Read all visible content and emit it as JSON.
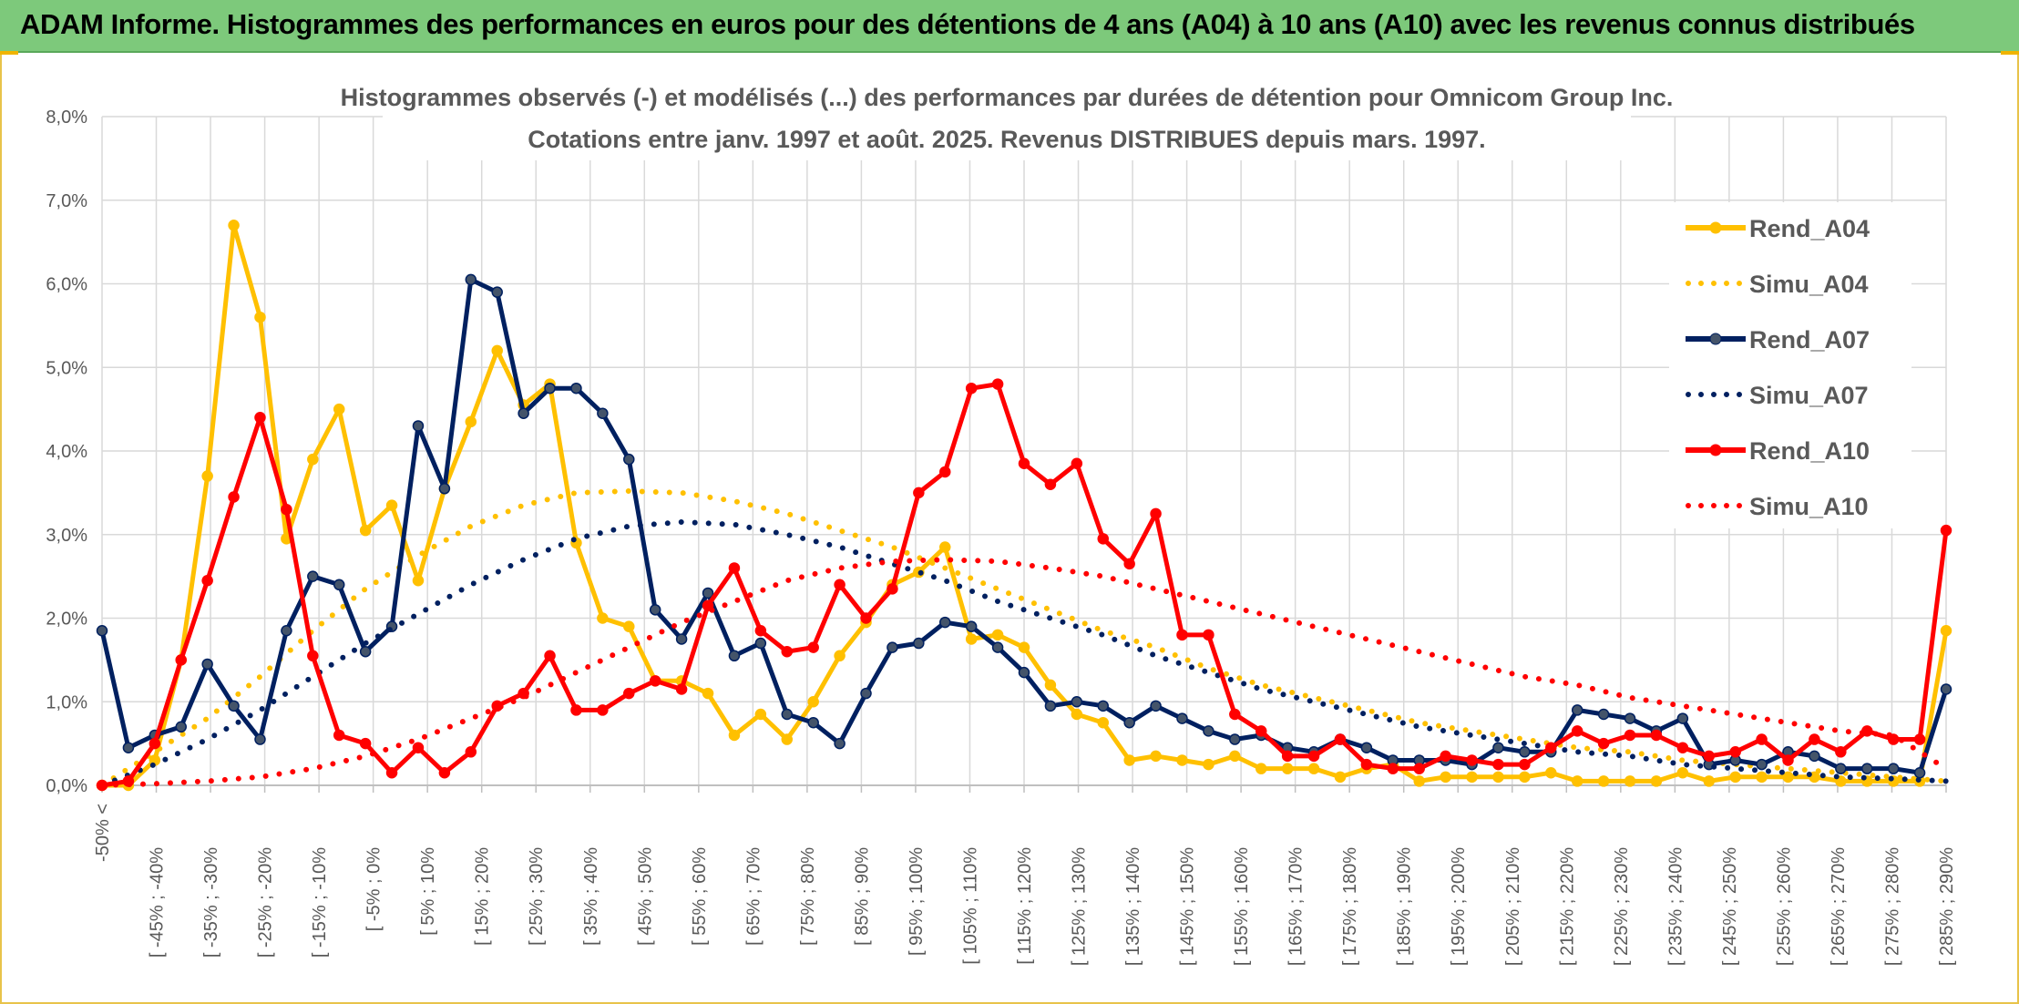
{
  "banner": {
    "title": "ADAM Informe. Histogrammes des performances en euros pour des détentions de 4 ans (A04) à 10 ans (A10) avec les revenus connus distribués"
  },
  "chart_data": {
    "type": "line",
    "title": "Histogrammes observés (-) et modélisés (...) des performances par durées de détention pour Omnicom Group Inc.",
    "subtitle": "Cotations entre janv. 1997 et août. 2025. Revenus DISTRIBUES depuis mars. 1997.",
    "xlabel": "",
    "ylabel": "",
    "ylim": [
      0,
      8
    ],
    "y_ticks": [
      "0,0%",
      "1,0%",
      "2,0%",
      "3,0%",
      "4,0%",
      "5,0%",
      "6,0%",
      "7,0%",
      "8,0%"
    ],
    "grid": true,
    "legend_position": "right",
    "x_labels": [
      "-50% <",
      "[ -45% ; -40%",
      "[ -35% ; -30%",
      "[ -25% ; -20%",
      "[ -15% ; -10%",
      "[ -5% ; 0%",
      "[ 5% ; 10%",
      "[ 15% ; 20%",
      "[ 25% ; 30%",
      "[ 35% ; 40%",
      "[ 45% ; 50%",
      "[ 55% ; 60%",
      "[ 65% ; 70%",
      "[ 75% ; 80%",
      "[ 85% ; 90%",
      "[ 95% ; 100%",
      "[ 105% ; 110%",
      "[ 115% ; 120%",
      "[ 125% ; 130%",
      "[ 135% ; 140%",
      "[ 145% ; 150%",
      "[ 155% ; 160%",
      "[ 165% ; 170%",
      "[ 175% ; 180%",
      "[ 185% ; 190%",
      "[ 195% ; 200%",
      "[ 205% ; 210%",
      "[ 215% ; 220%",
      "[ 225% ; 230%",
      "[ 235% ; 240%",
      "[ 245% ; 250%",
      "[ 255% ; 260%",
      "[ 265% ; 270%",
      "[ 275% ; 280%",
      "[ 285% ; 290%"
    ],
    "series": [
      {
        "name": "Rend_A04",
        "style": "solid",
        "color": "#ffc000",
        "values": [
          0.0,
          0.0,
          0.3,
          1.5,
          3.7,
          6.7,
          5.6,
          2.95,
          3.9,
          4.5,
          3.05,
          3.35,
          2.45,
          3.55,
          4.35,
          5.2,
          4.55,
          4.8,
          2.9,
          2.0,
          1.9,
          1.25,
          1.25,
          1.1,
          0.6,
          0.85,
          0.55,
          1.0,
          1.55,
          1.95,
          2.4,
          2.55,
          2.85,
          1.75,
          1.8,
          1.65,
          1.2,
          0.85,
          0.75,
          0.3,
          0.35,
          0.3,
          0.25,
          0.35,
          0.2,
          0.2,
          0.2,
          0.1,
          0.2,
          0.25,
          0.05,
          0.1,
          0.1,
          0.1,
          0.1,
          0.15,
          0.05,
          0.05,
          0.05,
          0.05,
          0.15,
          0.05,
          0.1,
          0.1,
          0.1,
          0.1,
          0.05,
          0.05,
          0.05,
          0.05,
          1.85
        ]
      },
      {
        "name": "Simu_A04",
        "style": "dotted",
        "color": "#ffc000",
        "values": [
          0.0,
          0.4,
          0.8,
          1.3,
          1.85,
          2.35,
          2.75,
          3.1,
          3.35,
          3.5,
          3.52,
          3.5,
          3.4,
          3.25,
          3.05,
          2.85,
          2.6,
          2.35,
          2.1,
          1.85,
          1.65,
          1.4,
          1.2,
          1.05,
          0.9,
          0.75,
          0.65,
          0.55,
          0.45,
          0.4,
          0.3,
          0.25,
          0.2,
          0.15,
          0.1,
          0.05
        ]
      },
      {
        "name": "Rend_A07",
        "style": "solid",
        "color": "#002060",
        "values": [
          1.85,
          0.45,
          0.6,
          0.7,
          1.45,
          0.95,
          0.55,
          1.85,
          2.5,
          2.4,
          1.6,
          1.9,
          4.3,
          3.55,
          6.05,
          5.9,
          4.45,
          4.75,
          4.75,
          4.45,
          3.9,
          2.1,
          1.75,
          2.3,
          1.55,
          1.7,
          0.85,
          0.75,
          0.5,
          1.1,
          1.65,
          1.7,
          1.95,
          1.9,
          1.65,
          1.35,
          0.95,
          1.0,
          0.95,
          0.75,
          0.95,
          0.8,
          0.65,
          0.55,
          0.6,
          0.45,
          0.4,
          0.55,
          0.45,
          0.3,
          0.3,
          0.3,
          0.25,
          0.45,
          0.4,
          0.4,
          0.9,
          0.85,
          0.8,
          0.65,
          0.8,
          0.25,
          0.3,
          0.25,
          0.4,
          0.35,
          0.2,
          0.2,
          0.2,
          0.15,
          1.15
        ]
      },
      {
        "name": "Simu_A07",
        "style": "dotted",
        "color": "#002060",
        "values": [
          0.0,
          0.25,
          0.55,
          0.9,
          1.3,
          1.7,
          2.05,
          2.4,
          2.7,
          2.95,
          3.1,
          3.15,
          3.12,
          3.0,
          2.85,
          2.65,
          2.45,
          2.2,
          2.0,
          1.8,
          1.55,
          1.35,
          1.15,
          1.0,
          0.85,
          0.7,
          0.6,
          0.5,
          0.4,
          0.35,
          0.25,
          0.2,
          0.15,
          0.1,
          0.08,
          0.05
        ]
      },
      {
        "name": "Rend_A10",
        "style": "solid",
        "color": "#ff0000",
        "values": [
          0.0,
          0.05,
          0.5,
          1.5,
          2.45,
          3.45,
          4.4,
          3.3,
          1.55,
          0.6,
          0.5,
          0.15,
          0.45,
          0.15,
          0.4,
          0.95,
          1.1,
          1.55,
          0.9,
          0.9,
          1.1,
          1.25,
          1.15,
          2.15,
          2.6,
          1.85,
          1.6,
          1.65,
          2.4,
          2.0,
          2.35,
          3.5,
          3.75,
          4.75,
          4.8,
          3.85,
          3.6,
          3.85,
          2.95,
          2.65,
          3.25,
          1.8,
          1.8,
          0.85,
          0.65,
          0.35,
          0.35,
          0.55,
          0.25,
          0.2,
          0.2,
          0.35,
          0.3,
          0.25,
          0.25,
          0.45,
          0.65,
          0.5,
          0.6,
          0.6,
          0.45,
          0.35,
          0.4,
          0.55,
          0.3,
          0.55,
          0.4,
          0.65,
          0.55,
          0.55,
          3.05
        ]
      },
      {
        "name": "Simu_A10",
        "style": "dotted",
        "color": "#ff0000",
        "values": [
          0.0,
          0.02,
          0.05,
          0.1,
          0.2,
          0.35,
          0.55,
          0.8,
          1.05,
          1.35,
          1.65,
          1.95,
          2.2,
          2.45,
          2.6,
          2.68,
          2.7,
          2.68,
          2.6,
          2.5,
          2.35,
          2.2,
          2.05,
          1.9,
          1.75,
          1.6,
          1.45,
          1.3,
          1.2,
          1.05,
          0.95,
          0.85,
          0.75,
          0.65,
          0.6,
          0.2
        ]
      }
    ]
  }
}
